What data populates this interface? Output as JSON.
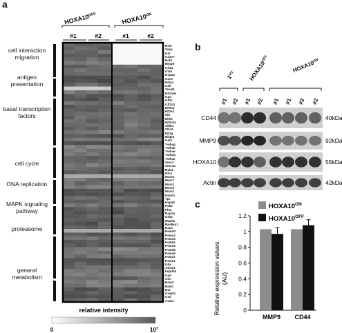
{
  "panels": {
    "a": "a",
    "b": "b",
    "c": "c"
  },
  "heatmap": {
    "group_off": "HOXA10",
    "group_off_sup": "OFF",
    "group_on": "HOXA10",
    "group_on_sup": "ON",
    "replicates": [
      "#1",
      "#2",
      "#1",
      "#2"
    ],
    "categories": [
      "cell interaction\nmigration",
      "antigen\npresentation",
      "basal transcription\nfactors",
      "cell cycle",
      "DNA replication",
      "MAPK signaling\npathway",
      "proteasome",
      "general\nmetabolism"
    ],
    "genes": [
      "Ncf1",
      "Vasp",
      "Dst",
      "Cd177",
      "Ncf4",
      "Mmp9",
      "Cd44",
      "Ctsb",
      "Hspa4",
      "Canx",
      "Pdia3",
      "Calr",
      "Tceal1",
      "Ddx19a",
      "Gpx",
      "Gtf2i",
      "Gtf2a1",
      "Eif2s3",
      "Eif2s1",
      "Sf1",
      "Eif2e",
      "Eif2s3x",
      "Sf3b1",
      "Sfrs3",
      "Eif1g",
      "Eif4e1",
      "Gaf2",
      "Ywhag",
      "Ywhab",
      "Ywhae",
      "Ywhaq",
      "Ywhaz",
      "Smc3",
      "Smc1a",
      "Bub3",
      "Rfc4",
      "Mcm4",
      "Mcm7",
      "Mcm2",
      "Mcm6",
      "Mcm3",
      "Dnmt1",
      "Tpr",
      "Hspa8",
      "Pak2",
      "Flna",
      "Rap1b",
      "Grb2",
      "Mapk1",
      "Rps6ka1",
      "Rac2",
      "Psmd3",
      "Psmc2",
      "Psmc5",
      "Psmb1",
      "Psma3",
      "Psmd6",
      "Psma6",
      "Psma7",
      "Psme1",
      "Gda",
      "Adssl1",
      "Impdh2",
      "Gart",
      "Atic",
      "Nme2",
      "Nme1",
      "Dut",
      "Cmpk1",
      "Csd",
      "Acat1"
    ],
    "intensity_label": "relative intensity",
    "scale_min": "0",
    "scale_max_base": "10",
    "scale_max_exp": "7"
  },
  "western": {
    "groups": [
      {
        "label": "1",
        "label_sup": "ary",
        "lanes": [
          "#1",
          "#2"
        ]
      },
      {
        "label": "HOXA10",
        "label_sup": "OFF",
        "lanes": [
          "#1",
          "#2"
        ]
      },
      {
        "label": "HOXA10",
        "label_sup": "ON",
        "lanes": [
          "#1",
          "#1",
          "#2",
          "#2"
        ]
      }
    ],
    "proteins": [
      "CD44",
      "MMP9",
      "HOXA10",
      "Actin"
    ],
    "sizes": [
      "40kDa",
      "92kDa",
      "55kDa",
      "42kDa"
    ]
  },
  "chart_data": {
    "type": "bar",
    "categories": [
      "MMP9",
      "CD44"
    ],
    "series": [
      {
        "name": "HOXA10ON",
        "color": "#8c8c8c",
        "values": [
          1.03,
          1.03
        ]
      },
      {
        "name": "HOXA10OFF",
        "color": "#111111",
        "values": [
          0.97,
          1.08
        ],
        "errors": [
          0.08,
          0.07
        ]
      }
    ],
    "ylabel": "Relative expression values (AU)",
    "ylim": [
      0,
      1.2
    ],
    "yticks": [
      "0",
      "0.2",
      "0.4",
      "0.6",
      "0.8",
      "1",
      "1.2"
    ],
    "legend": [
      {
        "base": "HOXA10",
        "sup": "ON"
      },
      {
        "base": "HOXA10",
        "sup": "OFF"
      }
    ]
  }
}
